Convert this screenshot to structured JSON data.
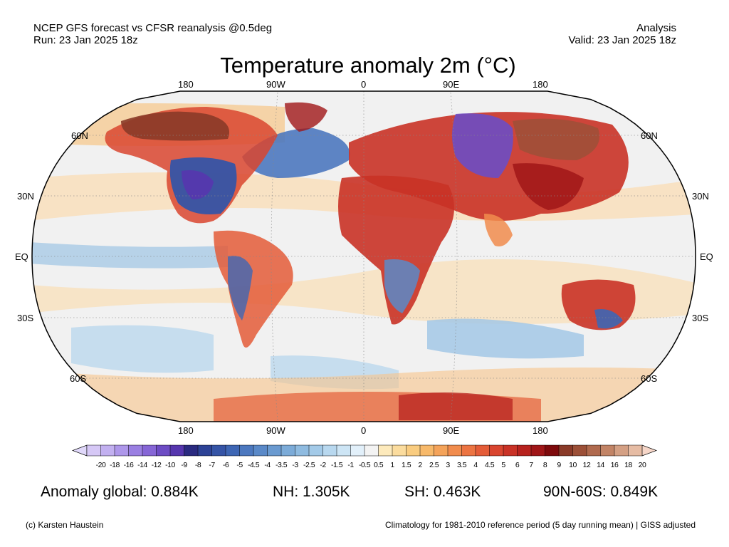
{
  "header": {
    "left_line1": "NCEP GFS forecast vs CFSR reanalysis @0.5deg",
    "left_line2": "Run: 23 Jan 2025 18z",
    "right_line1": "Analysis",
    "right_line2": "Valid: 23 Jan 2025 18z"
  },
  "title": "Temperature anomaly 2m (°C)",
  "map": {
    "projection": "Robinson",
    "lon_labels_top": [
      "180",
      "90W",
      "0",
      "90E",
      "180"
    ],
    "lon_labels_bottom": [
      "180",
      "90W",
      "0",
      "90E",
      "180"
    ],
    "lat_labels_left": [
      "60N",
      "30N",
      "EQ",
      "30S",
      "60S"
    ],
    "lat_labels_right": [
      "60N",
      "30N",
      "EQ",
      "30S",
      "60S"
    ],
    "ocean_color": "#f1f1f1"
  },
  "colorbar": {
    "ticks": [
      "-20",
      "-18",
      "-16",
      "-14",
      "-12",
      "-10",
      "-9",
      "-8",
      "-7",
      "-6",
      "-5",
      "-4.5",
      "-4",
      "-3.5",
      "-3",
      "-2.5",
      "-2",
      "-1.5",
      "-1",
      "-0.5",
      "0.5",
      "1",
      "1.5",
      "2",
      "2.5",
      "3",
      "3.5",
      "4",
      "4.5",
      "5",
      "6",
      "7",
      "8",
      "9",
      "10",
      "12",
      "14",
      "16",
      "18",
      "20"
    ],
    "colors": [
      "#d6c8f6",
      "#c2b0f0",
      "#ae97ea",
      "#9a7fe2",
      "#8666d6",
      "#6d4cc4",
      "#5636ae",
      "#2a2a80",
      "#2d4296",
      "#3554a6",
      "#3e66b4",
      "#4c78bf",
      "#5a89c8",
      "#6a9ad0",
      "#7cabd8",
      "#8fbbe0",
      "#a3cae8",
      "#b8d8ef",
      "#cde5f5",
      "#e2f0fa",
      "#f3f3f3",
      "#fdeabc",
      "#fbdc9e",
      "#f9cc80",
      "#f7b96a",
      "#f4a35a",
      "#f18c4d",
      "#ec7442",
      "#e45c38",
      "#d9452f",
      "#c93226",
      "#b7221e",
      "#a01618",
      "#7e0a0c",
      "#8a3a28",
      "#9c5038",
      "#b06a4e",
      "#c28466",
      "#d4a084",
      "#e6bca4"
    ],
    "left_arrow_color": "#e0d8fa",
    "right_arrow_color": "#f6d6c8"
  },
  "stats": {
    "global": "Anomaly global: 0.884K",
    "nh": "NH: 1.305K",
    "sh": "SH: 0.463K",
    "arctic": "90N-60S: 0.849K"
  },
  "footer": {
    "left": "(c) Karsten Haustein",
    "right": "Climatology for 1981-2010 reference period (5 day running mean) | GISS adjusted"
  }
}
